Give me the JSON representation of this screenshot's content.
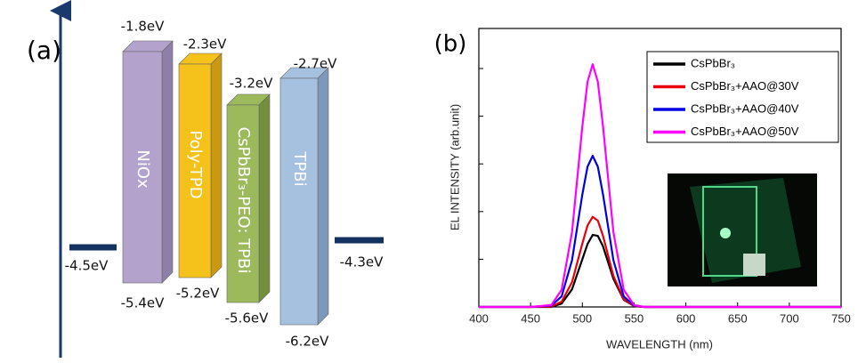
{
  "diagram": {
    "label": "(a)",
    "layers": [
      {
        "name": "NiOx",
        "top": "-1.8eV",
        "bottom": "-5.4eV"
      },
      {
        "name": "Poly-TPD",
        "top": "-2.3eV",
        "bottom": "-5.2eV"
      },
      {
        "name": "CsPbBr₃-PEO: TPBi",
        "top": "-3.2eV",
        "bottom": "-5.6eV"
      },
      {
        "name": "TPBi",
        "top": "-2.7eV",
        "bottom": "-6.2eV"
      }
    ],
    "electrodes": [
      "-4.5eV",
      "-4.3eV"
    ]
  },
  "chart_data": {
    "type": "line",
    "panel_label": "(b)",
    "x_label": "WAVELENGTH (nm)",
    "y_label": "EL INTENSITY (arb.unit)",
    "x": [
      400,
      450,
      470,
      480,
      490,
      500,
      505,
      510,
      515,
      520,
      530,
      540,
      550,
      560,
      600,
      650,
      700,
      750
    ],
    "xlim": [
      400,
      750
    ],
    "xticks": [
      400,
      450,
      500,
      550,
      600,
      650,
      700,
      750
    ],
    "ylim": [
      0,
      5.84
    ],
    "yticks": [
      0,
      1,
      2,
      3,
      4,
      5
    ],
    "series": [
      {
        "name": "CsPbBr₃",
        "color": "#000000",
        "values": [
          0,
          0,
          0,
          0.07,
          0.37,
          1.0,
          1.32,
          1.51,
          1.49,
          1.27,
          0.59,
          0.15,
          0.02,
          0,
          0,
          0,
          0,
          0
        ]
      },
      {
        "name": "CsPbBr₃+AAO@30V",
        "color": "#e8000b",
        "values": [
          0,
          0,
          0.01,
          0.11,
          0.52,
          1.33,
          1.71,
          1.89,
          1.81,
          1.49,
          0.65,
          0.16,
          0.02,
          0,
          0,
          0,
          0,
          0
        ]
      },
      {
        "name": "CsPbBr₃+AAO@40V",
        "color": "#0000e0",
        "values": [
          0,
          0,
          0.03,
          0.22,
          0.98,
          2.36,
          2.94,
          3.17,
          2.94,
          2.36,
          0.98,
          0.22,
          0.03,
          0,
          0,
          0,
          0,
          0
        ]
      },
      {
        "name": "CsPbBr₃+AAO@50V",
        "color": "#ff00ff",
        "values": [
          0,
          0,
          0.04,
          0.36,
          1.57,
          3.79,
          4.72,
          5.09,
          4.72,
          3.79,
          1.57,
          0.36,
          0.04,
          0,
          0,
          0,
          0,
          0
        ]
      }
    ]
  }
}
